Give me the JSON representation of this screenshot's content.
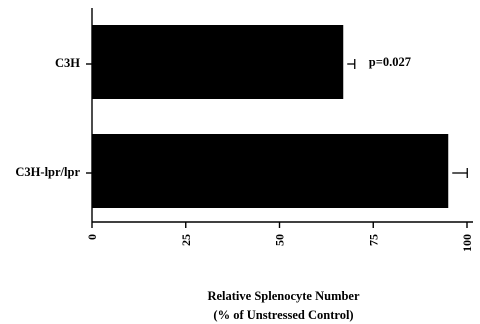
{
  "chart_data": {
    "type": "bar",
    "orientation": "horizontal",
    "categories": [
      "C3H",
      "C3H-lpr/lpr"
    ],
    "values": [
      67,
      95
    ],
    "errors": [
      2,
      4
    ],
    "xlim": [
      0,
      100
    ],
    "xticks": [
      0,
      25,
      50,
      75,
      100
    ],
    "xticklabels": [
      "0",
      "25",
      "50",
      "75",
      "100"
    ],
    "xlabel_line1": "Relative Splenocyte Number",
    "xlabel_line2": "(% of Unstressed Control)",
    "ylabel": "",
    "title": "",
    "annotation": {
      "text": "p=0.027",
      "category": "C3H"
    },
    "bar_color": "#000000",
    "grid": false,
    "legend": "none"
  }
}
